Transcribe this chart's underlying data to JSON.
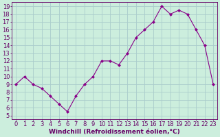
{
  "x": [
    0,
    1,
    2,
    3,
    4,
    5,
    6,
    7,
    8,
    9,
    10,
    11,
    12,
    13,
    14,
    15,
    16,
    17,
    18,
    19,
    20,
    21,
    22,
    23
  ],
  "y": [
    9,
    10,
    9,
    8.5,
    7.5,
    6.5,
    5.5,
    7.5,
    9,
    10,
    12,
    12,
    11.5,
    13,
    15,
    16,
    17,
    19,
    18,
    18.5,
    18,
    16,
    14,
    9
  ],
  "line_color": "#880088",
  "marker_color": "#880088",
  "bg_color": "#cceedd",
  "grid_color": "#aacccc",
  "xlabel": "Windchill (Refroidissement éolien,°C)",
  "xlim": [
    -0.5,
    23.5
  ],
  "ylim": [
    4.5,
    19.5
  ],
  "yticks": [
    5,
    6,
    7,
    8,
    9,
    10,
    11,
    12,
    13,
    14,
    15,
    16,
    17,
    18,
    19
  ],
  "xticks": [
    0,
    1,
    2,
    3,
    4,
    5,
    6,
    7,
    8,
    9,
    10,
    11,
    12,
    13,
    14,
    15,
    16,
    17,
    18,
    19,
    20,
    21,
    22,
    23
  ],
  "label_color": "#660066",
  "label_fontsize": 6.5,
  "tick_fontsize": 6.0
}
